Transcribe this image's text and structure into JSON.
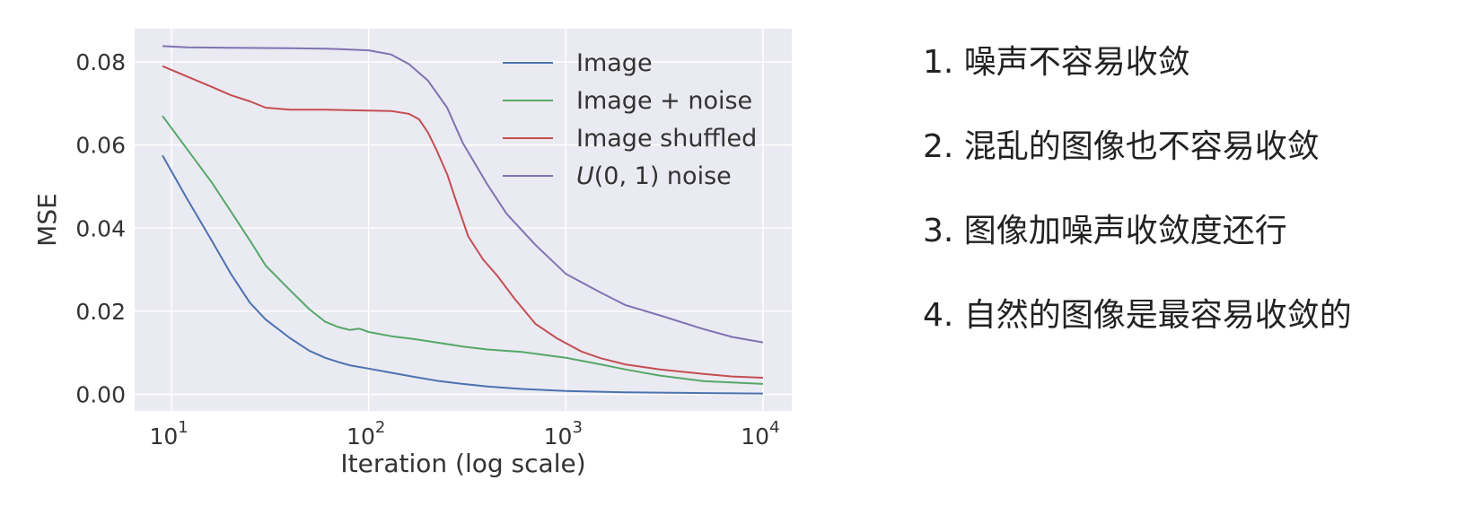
{
  "chart_data": {
    "type": "line",
    "title": "",
    "xlabel": "Iteration (log scale)",
    "ylabel": "MSE",
    "xscale": "log",
    "xlim": [
      6.5,
      14000
    ],
    "ylim": [
      -0.004,
      0.088
    ],
    "grid": true,
    "legend_position": "top-right",
    "x_ticks": [
      10,
      100,
      1000,
      10000
    ],
    "x_tick_labels": [
      {
        "base": "10",
        "exp": "1"
      },
      {
        "base": "10",
        "exp": "2"
      },
      {
        "base": "10",
        "exp": "3"
      },
      {
        "base": "10",
        "exp": "4"
      }
    ],
    "y_ticks": [
      0.0,
      0.02,
      0.04,
      0.06,
      0.08
    ],
    "y_tick_labels": [
      "0.00",
      "0.02",
      "0.04",
      "0.06",
      "0.08"
    ],
    "series": [
      {
        "name": "Image",
        "color": "#4c72b0",
        "points": [
          [
            9,
            0.0575
          ],
          [
            12,
            0.047
          ],
          [
            16,
            0.037
          ],
          [
            20,
            0.029
          ],
          [
            25,
            0.022
          ],
          [
            30,
            0.018
          ],
          [
            40,
            0.0135
          ],
          [
            50,
            0.0105
          ],
          [
            60,
            0.0088
          ],
          [
            70,
            0.0078
          ],
          [
            80,
            0.007
          ],
          [
            100,
            0.0062
          ],
          [
            130,
            0.0052
          ],
          [
            170,
            0.0042
          ],
          [
            220,
            0.0033
          ],
          [
            300,
            0.0025
          ],
          [
            400,
            0.0019
          ],
          [
            600,
            0.0013
          ],
          [
            1000,
            0.0008
          ],
          [
            2000,
            0.0005
          ],
          [
            5000,
            0.0003
          ],
          [
            10000,
            0.0002
          ]
        ]
      },
      {
        "name": "Image + noise",
        "color": "#55a868",
        "points": [
          [
            9,
            0.067
          ],
          [
            12,
            0.059
          ],
          [
            16,
            0.051
          ],
          [
            20,
            0.044
          ],
          [
            25,
            0.037
          ],
          [
            30,
            0.031
          ],
          [
            40,
            0.025
          ],
          [
            50,
            0.0205
          ],
          [
            60,
            0.0175
          ],
          [
            70,
            0.0162
          ],
          [
            80,
            0.0155
          ],
          [
            90,
            0.0158
          ],
          [
            100,
            0.015
          ],
          [
            130,
            0.014
          ],
          [
            170,
            0.0133
          ],
          [
            220,
            0.0125
          ],
          [
            300,
            0.0115
          ],
          [
            400,
            0.0108
          ],
          [
            600,
            0.0102
          ],
          [
            1000,
            0.0088
          ],
          [
            1500,
            0.0072
          ],
          [
            2000,
            0.006
          ],
          [
            3000,
            0.0045
          ],
          [
            5000,
            0.0032
          ],
          [
            10000,
            0.0025
          ]
        ]
      },
      {
        "name": "Image shuffled",
        "color": "#c44e52",
        "points": [
          [
            9,
            0.079
          ],
          [
            12,
            0.0765
          ],
          [
            16,
            0.074
          ],
          [
            20,
            0.072
          ],
          [
            25,
            0.0705
          ],
          [
            30,
            0.069
          ],
          [
            40,
            0.0685
          ],
          [
            60,
            0.0685
          ],
          [
            100,
            0.0683
          ],
          [
            130,
            0.0682
          ],
          [
            160,
            0.0675
          ],
          [
            180,
            0.0662
          ],
          [
            200,
            0.063
          ],
          [
            220,
            0.059
          ],
          [
            250,
            0.053
          ],
          [
            280,
            0.046
          ],
          [
            320,
            0.038
          ],
          [
            380,
            0.0325
          ],
          [
            450,
            0.0285
          ],
          [
            550,
            0.023
          ],
          [
            700,
            0.017
          ],
          [
            900,
            0.0135
          ],
          [
            1200,
            0.0103
          ],
          [
            1500,
            0.0087
          ],
          [
            2000,
            0.0072
          ],
          [
            3000,
            0.006
          ],
          [
            5000,
            0.0049
          ],
          [
            7000,
            0.0043
          ],
          [
            10000,
            0.004
          ]
        ]
      },
      {
        "name": "U(0, 1) noise",
        "color": "#8172b2",
        "points": [
          [
            9,
            0.0838
          ],
          [
            12,
            0.0835
          ],
          [
            20,
            0.0834
          ],
          [
            40,
            0.0833
          ],
          [
            60,
            0.0832
          ],
          [
            80,
            0.083
          ],
          [
            100,
            0.0828
          ],
          [
            130,
            0.0818
          ],
          [
            160,
            0.0795
          ],
          [
            200,
            0.0755
          ],
          [
            250,
            0.069
          ],
          [
            300,
            0.0605
          ],
          [
            400,
            0.0505
          ],
          [
            500,
            0.0435
          ],
          [
            700,
            0.036
          ],
          [
            1000,
            0.029
          ],
          [
            1500,
            0.0245
          ],
          [
            2000,
            0.0215
          ],
          [
            3000,
            0.019
          ],
          [
            5000,
            0.0157
          ],
          [
            7000,
            0.0138
          ],
          [
            10000,
            0.0125
          ]
        ]
      }
    ]
  },
  "legend": [
    {
      "label": "Image",
      "color": "#4c72b0"
    },
    {
      "label": "Image + noise",
      "color": "#55a868"
    },
    {
      "label": "Image shuffled",
      "color": "#c44e52"
    },
    {
      "label_prefix": "U",
      "label_suffix": "(0, 1) noise",
      "color": "#8172b2"
    }
  ],
  "notes": [
    "1. 噪声不容易收敛",
    "2. 混乱的图像也不容易收敛",
    "3. 图像加噪声收敛度还行",
    "4. 自然的图像是最容易收敛的"
  ]
}
